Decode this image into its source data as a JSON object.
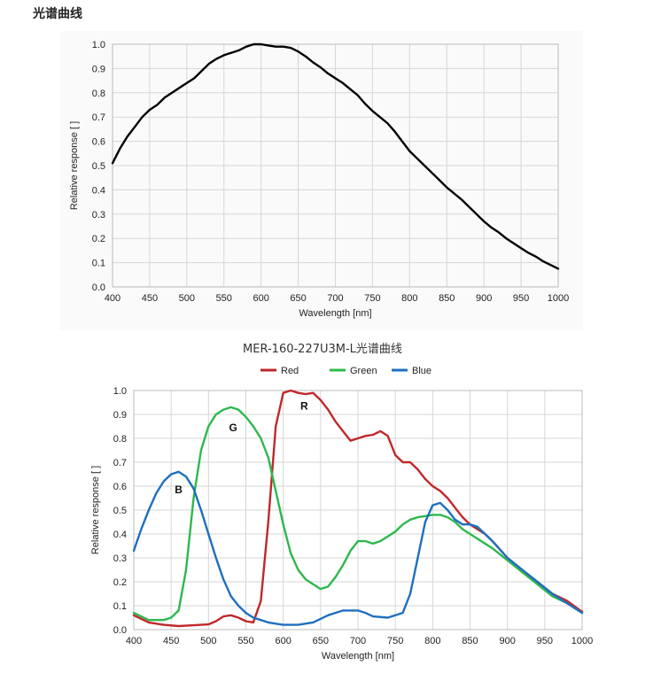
{
  "page_heading": "光谱曲线",
  "chart_data": [
    {
      "type": "line",
      "title": "",
      "xlabel": "Wavelength [nm]",
      "ylabel": "Relative response [ ]",
      "xlim": [
        400,
        1000
      ],
      "ylim": [
        0,
        1.0
      ],
      "x_ticks": [
        400,
        450,
        500,
        550,
        600,
        650,
        700,
        750,
        800,
        850,
        900,
        950,
        1000
      ],
      "y_ticks": [
        0.0,
        0.1,
        0.2,
        0.3,
        0.4,
        0.5,
        0.6,
        0.7,
        0.8,
        0.9,
        1.0
      ],
      "y_tick_labels": [
        "0.0",
        "0.1",
        "0.2",
        "0.3",
        "0.4",
        "0.5",
        "0.6",
        "0.7",
        "0.8",
        "0.9",
        "1.0"
      ],
      "grid": true,
      "series": [
        {
          "color": "#000000",
          "x": [
            400,
            410,
            420,
            430,
            440,
            450,
            460,
            470,
            480,
            490,
            500,
            510,
            520,
            530,
            540,
            550,
            560,
            570,
            580,
            590,
            600,
            610,
            620,
            630,
            640,
            650,
            660,
            670,
            680,
            690,
            700,
            710,
            720,
            730,
            740,
            750,
            760,
            770,
            780,
            790,
            800,
            810,
            820,
            830,
            840,
            850,
            860,
            870,
            880,
            890,
            900,
            910,
            920,
            930,
            940,
            950,
            960,
            970,
            980,
            990,
            1000
          ],
          "y": [
            0.51,
            0.57,
            0.62,
            0.66,
            0.7,
            0.73,
            0.75,
            0.78,
            0.8,
            0.82,
            0.84,
            0.86,
            0.89,
            0.92,
            0.94,
            0.955,
            0.965,
            0.975,
            0.99,
            1.0,
            1.0,
            0.995,
            0.99,
            0.99,
            0.985,
            0.97,
            0.95,
            0.925,
            0.905,
            0.88,
            0.86,
            0.84,
            0.815,
            0.79,
            0.755,
            0.725,
            0.7,
            0.675,
            0.64,
            0.6,
            0.56,
            0.53,
            0.5,
            0.47,
            0.44,
            0.41,
            0.385,
            0.36,
            0.33,
            0.3,
            0.27,
            0.245,
            0.225,
            0.2,
            0.18,
            0.16,
            0.14,
            0.125,
            0.105,
            0.09,
            0.075
          ]
        }
      ]
    },
    {
      "type": "line",
      "title": "MER-160-227U3M-L光谱曲线",
      "xlabel": "Wavelength [nm]",
      "ylabel": "Relative response [ ]",
      "xlim": [
        400,
        1000
      ],
      "ylim": [
        0,
        1.0
      ],
      "x_ticks": [
        400,
        450,
        500,
        550,
        600,
        650,
        700,
        750,
        800,
        850,
        900,
        950,
        1000
      ],
      "y_ticks": [
        0.0,
        0.1,
        0.2,
        0.3,
        0.4,
        0.5,
        0.6,
        0.7,
        0.8,
        0.9,
        1.0
      ],
      "y_tick_labels": [
        "0.0",
        "0.1",
        "0.2",
        "0.3",
        "0.4",
        "0.5",
        "0.6",
        "0.7",
        "0.8",
        "0.9",
        "1.0"
      ],
      "grid": true,
      "legend_position": "top",
      "annotations": [
        {
          "text": "B",
          "x": 460,
          "y": 0.57
        },
        {
          "text": "G",
          "x": 533,
          "y": 0.83
        },
        {
          "text": "R",
          "x": 628,
          "y": 0.92
        }
      ],
      "series": [
        {
          "name": "Red",
          "color": "#c0282b",
          "x": [
            400,
            420,
            440,
            460,
            480,
            500,
            510,
            520,
            530,
            540,
            550,
            560,
            570,
            580,
            590,
            600,
            610,
            620,
            630,
            640,
            650,
            660,
            670,
            680,
            690,
            700,
            710,
            720,
            730,
            740,
            750,
            760,
            770,
            780,
            790,
            800,
            810,
            820,
            830,
            840,
            850,
            860,
            870,
            880,
            900,
            920,
            940,
            960,
            980,
            1000
          ],
          "y": [
            0.06,
            0.03,
            0.02,
            0.015,
            0.018,
            0.022,
            0.035,
            0.055,
            0.06,
            0.05,
            0.035,
            0.03,
            0.12,
            0.45,
            0.85,
            0.99,
            1.0,
            0.99,
            0.985,
            0.99,
            0.96,
            0.92,
            0.87,
            0.83,
            0.79,
            0.8,
            0.81,
            0.815,
            0.83,
            0.81,
            0.73,
            0.7,
            0.7,
            0.67,
            0.63,
            0.6,
            0.58,
            0.55,
            0.51,
            0.47,
            0.44,
            0.42,
            0.4,
            0.37,
            0.3,
            0.25,
            0.2,
            0.15,
            0.12,
            0.075
          ]
        },
        {
          "name": "Green",
          "color": "#2db84d",
          "x": [
            400,
            420,
            440,
            450,
            460,
            470,
            480,
            490,
            500,
            510,
            520,
            530,
            540,
            550,
            560,
            570,
            580,
            590,
            600,
            610,
            620,
            630,
            640,
            650,
            660,
            670,
            680,
            690,
            700,
            710,
            720,
            730,
            740,
            750,
            760,
            770,
            780,
            790,
            800,
            810,
            820,
            830,
            840,
            850,
            860,
            870,
            880,
            900,
            920,
            940,
            960,
            980,
            1000
          ],
          "y": [
            0.07,
            0.04,
            0.04,
            0.05,
            0.08,
            0.25,
            0.55,
            0.75,
            0.85,
            0.9,
            0.92,
            0.93,
            0.92,
            0.89,
            0.85,
            0.8,
            0.72,
            0.58,
            0.44,
            0.32,
            0.25,
            0.21,
            0.19,
            0.17,
            0.18,
            0.22,
            0.27,
            0.33,
            0.37,
            0.37,
            0.36,
            0.37,
            0.39,
            0.41,
            0.44,
            0.46,
            0.47,
            0.475,
            0.48,
            0.48,
            0.47,
            0.45,
            0.42,
            0.4,
            0.38,
            0.36,
            0.34,
            0.29,
            0.24,
            0.19,
            0.14,
            0.11,
            0.07
          ]
        },
        {
          "name": "Blue",
          "color": "#1f6fbf",
          "x": [
            400,
            410,
            420,
            430,
            440,
            450,
            460,
            470,
            480,
            490,
            500,
            510,
            520,
            530,
            540,
            550,
            560,
            570,
            580,
            590,
            600,
            620,
            640,
            660,
            680,
            700,
            710,
            720,
            740,
            760,
            770,
            780,
            790,
            800,
            810,
            820,
            830,
            840,
            850,
            860,
            870,
            880,
            900,
            920,
            940,
            960,
            980,
            1000
          ],
          "y": [
            0.33,
            0.42,
            0.5,
            0.57,
            0.62,
            0.65,
            0.66,
            0.64,
            0.59,
            0.5,
            0.4,
            0.3,
            0.21,
            0.14,
            0.1,
            0.07,
            0.05,
            0.04,
            0.03,
            0.025,
            0.02,
            0.02,
            0.03,
            0.06,
            0.08,
            0.08,
            0.07,
            0.055,
            0.05,
            0.07,
            0.15,
            0.3,
            0.45,
            0.52,
            0.53,
            0.5,
            0.46,
            0.44,
            0.44,
            0.43,
            0.4,
            0.37,
            0.3,
            0.25,
            0.2,
            0.15,
            0.11,
            0.07
          ]
        }
      ]
    }
  ]
}
